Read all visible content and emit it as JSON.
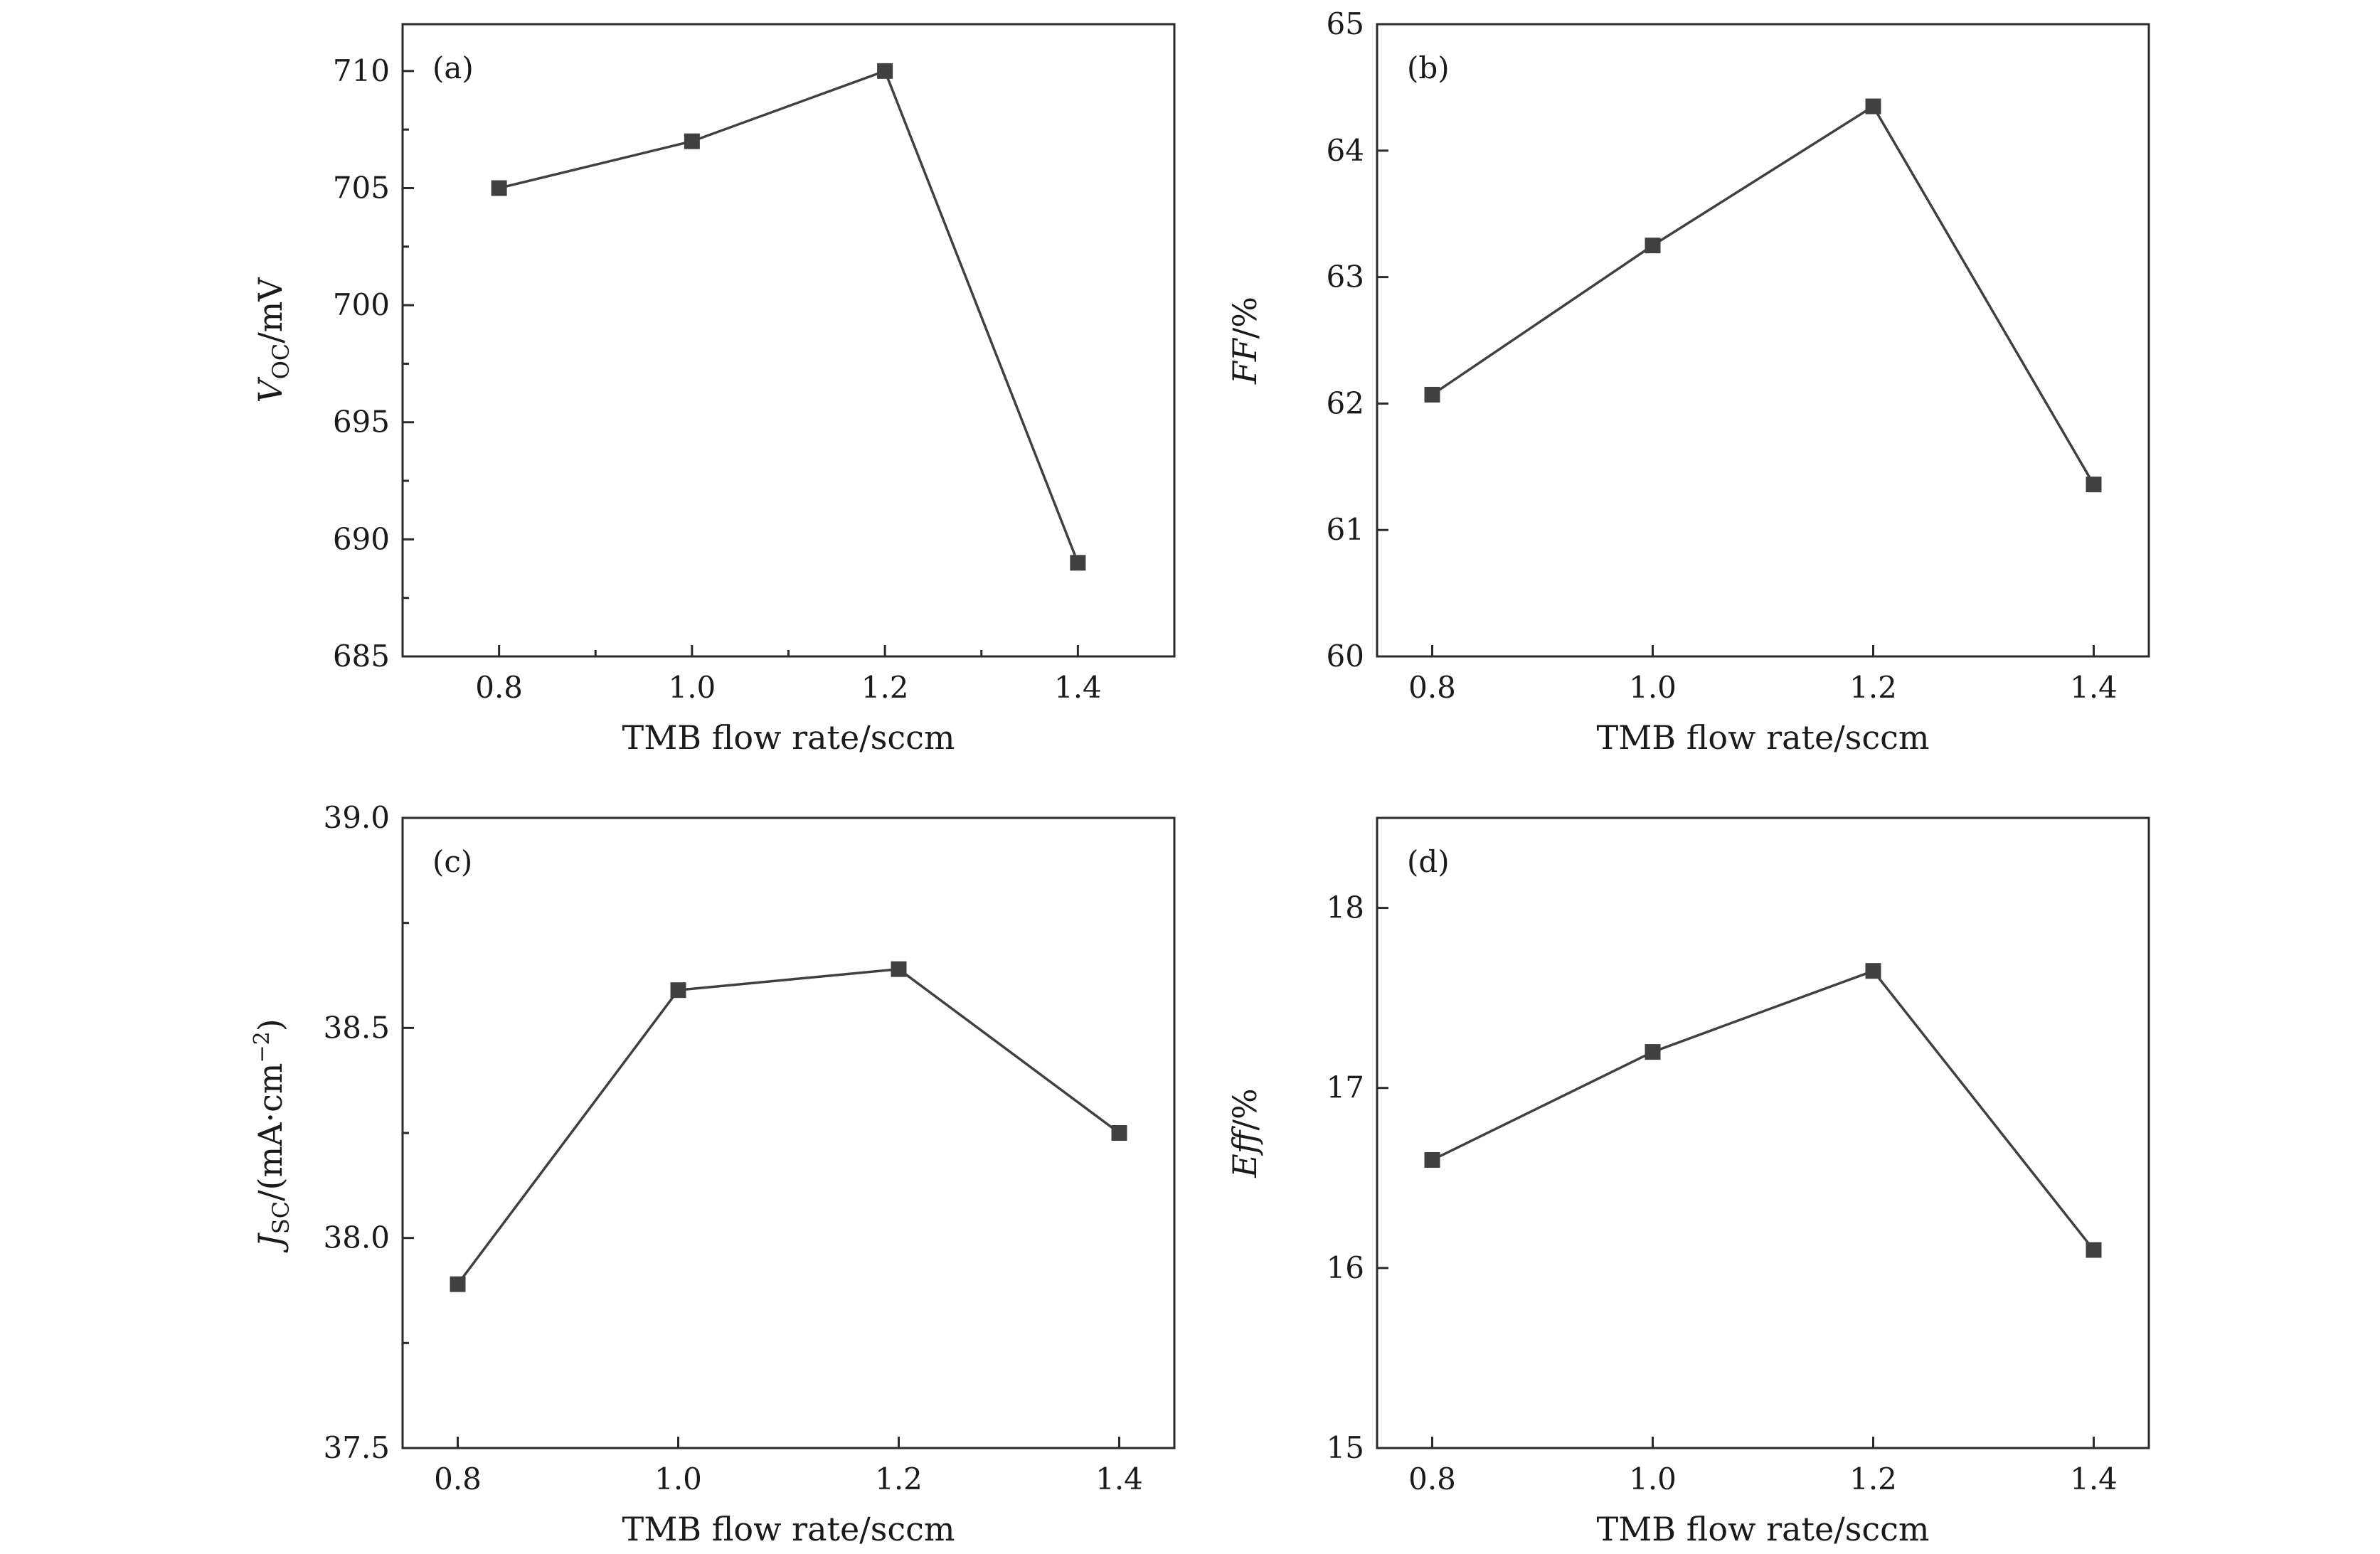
{
  "chart_data": [
    {
      "type": "line",
      "panel_label": "(a)",
      "xlabel": "TMB flow rate/sccm",
      "ylabel": {
        "main": "V",
        "sub": "OC",
        "tail": "/mV"
      },
      "x": [
        0.8,
        1.0,
        1.2,
        1.4
      ],
      "values": [
        705,
        707,
        710,
        689
      ],
      "xlim": [
        0.7,
        1.5
      ],
      "ylim": [
        685,
        712
      ],
      "xticks": [
        0.8,
        1.0,
        1.2,
        1.4
      ],
      "xtick_labels": [
        "0.8",
        "1.0",
        "1.2",
        "1.4"
      ],
      "yticks": [
        685,
        690,
        695,
        700,
        705,
        710
      ],
      "ytick_labels": [
        "685",
        "690",
        "695",
        "700",
        "705",
        "710"
      ],
      "x_minor": true,
      "y_minor": true,
      "grid": false,
      "marker": "square",
      "color": "#404040"
    },
    {
      "type": "line",
      "panel_label": "(b)",
      "xlabel": "TMB flow rate/sccm",
      "ylabel": {
        "main": "FF",
        "sub": "",
        "tail": "/%"
      },
      "x": [
        0.8,
        1.0,
        1.2,
        1.4
      ],
      "values": [
        62.07,
        63.25,
        64.35,
        61.36
      ],
      "xlim": [
        0.75,
        1.45
      ],
      "ylim": [
        60,
        65
      ],
      "xticks": [
        0.8,
        1.0,
        1.2,
        1.4
      ],
      "xtick_labels": [
        "0.8",
        "1.0",
        "1.2",
        "1.4"
      ],
      "yticks": [
        60,
        61,
        62,
        63,
        64,
        65
      ],
      "ytick_labels": [
        "60",
        "61",
        "62",
        "63",
        "64",
        "65"
      ],
      "x_minor": false,
      "y_minor": false,
      "grid": false,
      "marker": "square",
      "color": "#404040"
    },
    {
      "type": "line",
      "panel_label": "(c)",
      "xlabel": "TMB flow rate/sccm",
      "ylabel": {
        "main": "J",
        "sub": "SC",
        "tail": "/(mA·cm",
        "sup": "−2",
        "close": ")"
      },
      "x": [
        0.8,
        1.0,
        1.2,
        1.4
      ],
      "values": [
        37.89,
        38.59,
        38.64,
        38.25
      ],
      "xlim": [
        0.75,
        1.45
      ],
      "ylim": [
        37.5,
        39.0
      ],
      "xticks": [
        0.8,
        1.0,
        1.2,
        1.4
      ],
      "xtick_labels": [
        "0.8",
        "1.0",
        "1.2",
        "1.4"
      ],
      "yticks": [
        37.5,
        38.0,
        38.5,
        39.0
      ],
      "ytick_labels": [
        "37.5",
        "38.0",
        "38.5",
        "39.0"
      ],
      "x_minor": false,
      "y_minor": true,
      "grid": false,
      "marker": "square",
      "color": "#404040"
    },
    {
      "type": "line",
      "panel_label": "(d)",
      "xlabel": "TMB flow rate/sccm",
      "ylabel": {
        "main": "Eff",
        "sub": "",
        "tail": "/%"
      },
      "x": [
        0.8,
        1.0,
        1.2,
        1.4
      ],
      "values": [
        16.6,
        17.2,
        17.65,
        16.1
      ],
      "xlim": [
        0.75,
        1.45
      ],
      "ylim": [
        15,
        18.5
      ],
      "xticks": [
        0.8,
        1.0,
        1.2,
        1.4
      ],
      "xtick_labels": [
        "0.8",
        "1.0",
        "1.2",
        "1.4"
      ],
      "yticks": [
        15,
        16,
        17,
        18
      ],
      "ytick_labels": [
        "15",
        "16",
        "17",
        "18"
      ],
      "x_minor": false,
      "y_minor": false,
      "grid": false,
      "marker": "square",
      "color": "#404040"
    }
  ]
}
